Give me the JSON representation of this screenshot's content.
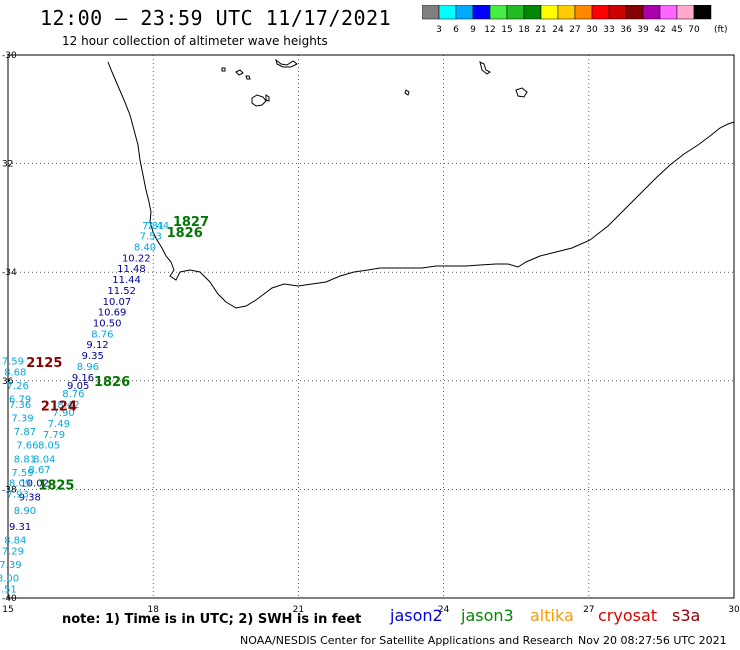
{
  "header": {
    "title": "12:00 – 23:59 UTC 11/17/2021",
    "subtitle": "12 hour collection of altimeter wave heights"
  },
  "legend": {
    "colors": [
      "#808080",
      "#00ffff",
      "#00aaff",
      "#0000ff",
      "#44ee44",
      "#22bb22",
      "#008800",
      "#ffff00",
      "#ffcc00",
      "#ff8800",
      "#ff0000",
      "#cc0000",
      "#880000",
      "#aa00aa",
      "#ff66ff",
      "#ffaacc",
      "#000000"
    ],
    "labels": [
      "3",
      "6",
      "9",
      "12",
      "15",
      "18",
      "21",
      "24",
      "27",
      "30",
      "33",
      "36",
      "39",
      "42",
      "45",
      "70"
    ],
    "unit": "(ft)"
  },
  "map": {
    "lon_ticks": [
      "15",
      "18",
      "21",
      "24",
      "27",
      "30"
    ],
    "lat_ticks": [
      "-30",
      "32",
      "-34",
      "36",
      "-38",
      "-40"
    ],
    "track_colors": {
      "jason2": "#000099",
      "jason3": "#007700",
      "cryosat": "#880000",
      "light": "#00aadd"
    },
    "time_labels": [
      {
        "text": "1827",
        "lon": 18.78,
        "lat": -33.15,
        "sat": "jason3"
      },
      {
        "text": "1826",
        "lon": 18.65,
        "lat": -33.35,
        "sat": "jason3"
      },
      {
        "text": "1826",
        "lon": 17.15,
        "lat": -36.1,
        "sat": "jason3"
      },
      {
        "text": "1825",
        "lon": 16.0,
        "lat": -38.0,
        "sat": "jason3"
      },
      {
        "text": "2125",
        "lon": 15.75,
        "lat": -35.75,
        "sat": "cryosat"
      },
      {
        "text": "2124",
        "lon": 16.05,
        "lat": -36.55,
        "sat": "cryosat"
      }
    ],
    "swh_values": [
      {
        "v": "7.81",
        "lon": 18.0,
        "lat": -33.2,
        "c": "light"
      },
      {
        "v": "7.44",
        "lon": 18.1,
        "lat": -33.2,
        "c": "light"
      },
      {
        "v": "7.53",
        "lon": 17.95,
        "lat": -33.4,
        "c": "light"
      },
      {
        "v": "8.40",
        "lon": 17.83,
        "lat": -33.6,
        "c": "light"
      },
      {
        "v": "10.22",
        "lon": 17.65,
        "lat": -33.8,
        "c": "jason2"
      },
      {
        "v": "11.48",
        "lon": 17.55,
        "lat": -34.0,
        "c": "jason2"
      },
      {
        "v": "11.44",
        "lon": 17.45,
        "lat": -34.2,
        "c": "jason2"
      },
      {
        "v": "11.52",
        "lon": 17.35,
        "lat": -34.4,
        "c": "jason2"
      },
      {
        "v": "10.07",
        "lon": 17.25,
        "lat": -34.6,
        "c": "jason2"
      },
      {
        "v": "10.69",
        "lon": 17.15,
        "lat": -34.8,
        "c": "jason2"
      },
      {
        "v": "10.50",
        "lon": 17.05,
        "lat": -35.0,
        "c": "jason2"
      },
      {
        "v": "8.76",
        "lon": 16.95,
        "lat": -35.2,
        "c": "light"
      },
      {
        "v": "9.12",
        "lon": 16.85,
        "lat": -35.4,
        "c": "jason2"
      },
      {
        "v": "9.35",
        "lon": 16.75,
        "lat": -35.6,
        "c": "jason2"
      },
      {
        "v": "8.96",
        "lon": 16.65,
        "lat": -35.8,
        "c": "light"
      },
      {
        "v": "9.16",
        "lon": 16.55,
        "lat": -36.0,
        "c": "jason2"
      },
      {
        "v": "9.05",
        "lon": 16.45,
        "lat": -36.15,
        "c": "jason2"
      },
      {
        "v": "8.76",
        "lon": 16.35,
        "lat": -36.3,
        "c": "light"
      },
      {
        "v": "8.42",
        "lon": 16.25,
        "lat": -36.5,
        "c": "light"
      },
      {
        "v": "7.90",
        "lon": 16.15,
        "lat": -36.65,
        "c": "light"
      },
      {
        "v": "7.49",
        "lon": 16.05,
        "lat": -36.85,
        "c": "light"
      },
      {
        "v": "7.79",
        "lon": 15.95,
        "lat": -37.05,
        "c": "light"
      },
      {
        "v": "8.05",
        "lon": 15.85,
        "lat": -37.25,
        "c": "light"
      },
      {
        "v": "8.04",
        "lon": 15.75,
        "lat": -37.5,
        "c": "light"
      },
      {
        "v": "8.67",
        "lon": 15.65,
        "lat": -37.7,
        "c": "light"
      },
      {
        "v": "10.02",
        "lon": 15.55,
        "lat": -37.95,
        "c": "jason2"
      },
      {
        "v": "9.38",
        "lon": 15.45,
        "lat": -38.2,
        "c": "jason2"
      },
      {
        "v": "8.90",
        "lon": 15.35,
        "lat": -38.45,
        "c": "light"
      },
      {
        "v": "9.31",
        "lon": 15.25,
        "lat": -38.75,
        "c": "jason2"
      },
      {
        "v": "8.84",
        "lon": 15.15,
        "lat": -39.0,
        "c": "light"
      },
      {
        "v": "7.29",
        "lon": 15.1,
        "lat": -39.2,
        "c": "light"
      },
      {
        "v": "7.39",
        "lon": 15.05,
        "lat": -39.45,
        "c": "light"
      },
      {
        "v": "8.00",
        "lon": 15.0,
        "lat": -39.7,
        "c": "light"
      },
      {
        "v": "8.51",
        "lon": 14.95,
        "lat": -39.9,
        "c": "light"
      },
      {
        "v": "7.59",
        "lon": 15.1,
        "lat": -35.7,
        "c": "light"
      },
      {
        "v": "8.68",
        "lon": 15.15,
        "lat": -35.9,
        "c": "light"
      },
      {
        "v": "7.26",
        "lon": 15.2,
        "lat": -36.15,
        "c": "light"
      },
      {
        "v": "6.79",
        "lon": 15.25,
        "lat": -36.4,
        "c": "light"
      },
      {
        "v": "7.36",
        "lon": 15.25,
        "lat": -36.5,
        "c": "light"
      },
      {
        "v": "7.39",
        "lon": 15.3,
        "lat": -36.75,
        "c": "light"
      },
      {
        "v": "7.87",
        "lon": 15.35,
        "lat": -37.0,
        "c": "light"
      },
      {
        "v": "7.66",
        "lon": 15.4,
        "lat": -37.25,
        "c": "light"
      },
      {
        "v": "8.81",
        "lon": 15.35,
        "lat": -37.5,
        "c": "light"
      },
      {
        "v": "7.59",
        "lon": 15.3,
        "lat": -37.75,
        "c": "light"
      },
      {
        "v": "8.09",
        "lon": 15.25,
        "lat": -37.95,
        "c": "light"
      },
      {
        "v": "7.93",
        "lon": 15.2,
        "lat": -38.15,
        "c": "light"
      }
    ]
  },
  "footer": {
    "note": "note: 1) Time is in UTC; 2) SWH is in feet",
    "sats": [
      {
        "name": "jason2",
        "color": "#0000dd"
      },
      {
        "name": "jason3",
        "color": "#008800"
      },
      {
        "name": "altika",
        "color": "#ff9900"
      },
      {
        "name": "cryosat",
        "color": "#dd0000"
      },
      {
        "name": "s3a",
        "color": "#880000"
      }
    ],
    "credit": "NOAA/NESDIS Center for Satellite Applications and Research",
    "timestamp": "Nov 20 08:27:56 UTC 2021"
  }
}
